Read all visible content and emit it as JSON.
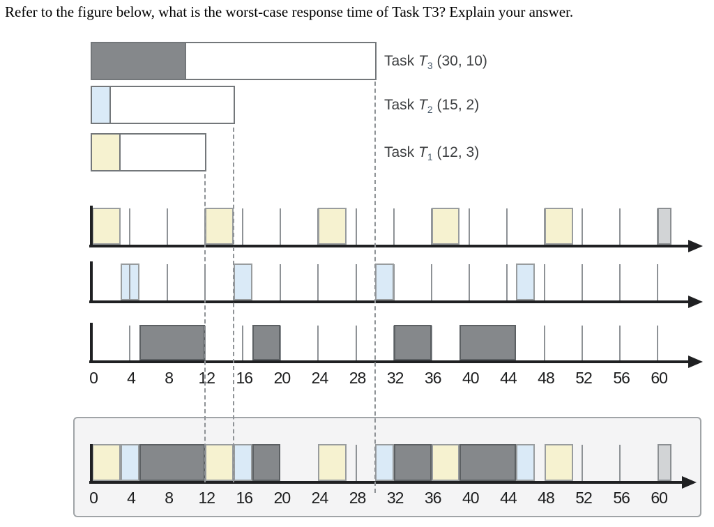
{
  "title": "Refer to the figure below, what is the worst-case response time of Task T3? Explain your answer.",
  "colors": {
    "t1": "#f6f2d0",
    "t2": "#daeaf7",
    "t3": "#85888b",
    "next": "#d2d4d6",
    "t1_border": "#989c9e",
    "t2_border": "#989c9e",
    "t3_border": "#5c6063",
    "next_border": "#8b8f92",
    "axis": "#1f2022",
    "tick": "#8e9296",
    "dashed": "#8e9296",
    "legend_border": "#73777a",
    "box_bg": "#f4f4f5",
    "box_border": "#a0a4a7",
    "label_text": "#3d3f41",
    "axis_text": "#1c1d1e"
  },
  "legend": [
    {
      "id": "t3",
      "word": "Task",
      "symbol": "T",
      "subscript": "3",
      "params": "(30, 10)",
      "period": 30,
      "wcet": 10
    },
    {
      "id": "t2",
      "word": "Task",
      "symbol": "T",
      "subscript": "2",
      "params": "(15, 2)",
      "period": 15,
      "wcet": 2
    },
    {
      "id": "t1",
      "word": "Task",
      "symbol": "T",
      "subscript": "1",
      "params": "(12, 3)",
      "period": 12,
      "wcet": 3
    }
  ],
  "axis_labels": [
    "0",
    "4",
    "8",
    "12",
    "16",
    "20",
    "24",
    "28",
    "32",
    "36",
    "40",
    "44",
    "48",
    "52",
    "56",
    "60"
  ],
  "chart_data": {
    "type": "gantt-timeline",
    "time_axis": {
      "min": 0,
      "max": 60,
      "tick_step": 4,
      "label_step": 4
    },
    "tasks": [
      {
        "name": "T1",
        "period": 12,
        "wcet": 3,
        "executions": [
          [
            0,
            3
          ],
          [
            12,
            15
          ],
          [
            24,
            27
          ],
          [
            36,
            39
          ],
          [
            48,
            51
          ]
        ],
        "next_release_block": [
          60,
          61.45
        ],
        "overlay_ticks": []
      },
      {
        "name": "T2",
        "period": 15,
        "wcet": 2,
        "executions": [
          [
            3,
            5
          ],
          [
            15,
            17
          ],
          [
            30,
            32
          ],
          [
            45,
            47
          ]
        ],
        "overlay_ticks": [
          4
        ]
      },
      {
        "name": "T3",
        "period": 30,
        "wcet": 10,
        "executions": [
          [
            5,
            12
          ],
          [
            17,
            20
          ],
          [
            32,
            36
          ],
          [
            39,
            45
          ]
        ],
        "overlay_ticks": []
      }
    ],
    "combined_schedule": [
      {
        "task": "T1",
        "start": 0,
        "end": 3
      },
      {
        "task": "T2",
        "start": 3,
        "end": 5
      },
      {
        "task": "T3",
        "start": 5,
        "end": 12
      },
      {
        "task": "T1",
        "start": 12,
        "end": 15
      },
      {
        "task": "T2",
        "start": 15,
        "end": 17
      },
      {
        "task": "T3",
        "start": 17,
        "end": 20
      },
      {
        "task": "T1",
        "start": 24,
        "end": 27
      },
      {
        "task": "T2",
        "start": 30,
        "end": 32
      },
      {
        "task": "T3",
        "start": 32,
        "end": 36
      },
      {
        "task": "T1",
        "start": 36,
        "end": 39
      },
      {
        "task": "T3",
        "start": 39,
        "end": 45
      },
      {
        "task": "T2",
        "start": 45,
        "end": 47
      },
      {
        "task": "T1",
        "start": 48,
        "end": 51
      },
      {
        "task": "next",
        "start": 60,
        "end": 61.45
      }
    ],
    "combined_ticks": [
      28,
      52,
      56
    ],
    "dashed_marker_times": [
      12,
      15,
      30
    ]
  }
}
